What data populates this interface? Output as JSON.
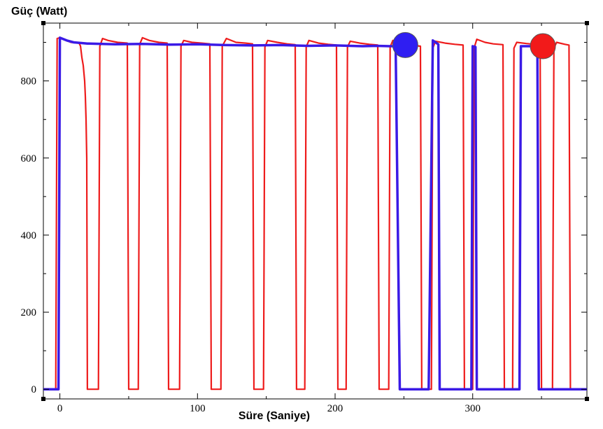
{
  "chart_data": {
    "type": "line",
    "title": "",
    "xlabel": "Süre (Saniye)",
    "ylabel": "Güç (Watt)",
    "xlim": [
      -12,
      383
    ],
    "ylim": [
      -25,
      950
    ],
    "xticks": [
      0,
      100,
      200,
      300
    ],
    "yticks": [
      0,
      200,
      400,
      600,
      800
    ],
    "grid": false,
    "legend": "none",
    "colors": {
      "red_series": "#ee1c1c",
      "blue_series": "#3a1ae6",
      "frame": "#000000"
    },
    "series": [
      {
        "color": "#ee1c1c",
        "points": [
          [
            -12,
            0
          ],
          [
            -3,
            0
          ],
          [
            -2,
            910
          ],
          [
            0,
            912
          ],
          [
            8,
            900
          ],
          [
            14,
            898
          ],
          [
            15,
            890
          ],
          [
            16,
            860
          ],
          [
            17,
            840
          ],
          [
            18,
            800
          ],
          [
            18.5,
            760
          ],
          [
            19,
            700
          ],
          [
            19.5,
            600
          ],
          [
            20,
            0
          ],
          [
            28,
            0
          ],
          [
            29,
            890
          ],
          [
            31,
            910
          ],
          [
            35,
            905
          ],
          [
            42,
            900
          ],
          [
            49,
            898
          ],
          [
            50,
            0
          ],
          [
            57,
            0
          ],
          [
            58,
            895
          ],
          [
            60,
            912
          ],
          [
            65,
            905
          ],
          [
            72,
            900
          ],
          [
            78,
            898
          ],
          [
            79,
            0
          ],
          [
            87,
            0
          ],
          [
            88,
            890
          ],
          [
            90,
            905
          ],
          [
            96,
            900
          ],
          [
            103,
            898
          ],
          [
            109,
            896
          ],
          [
            110,
            0
          ],
          [
            117,
            0
          ],
          [
            118,
            890
          ],
          [
            121,
            910
          ],
          [
            128,
            900
          ],
          [
            135,
            898
          ],
          [
            140,
            896
          ],
          [
            141,
            0
          ],
          [
            148,
            0
          ],
          [
            149,
            888
          ],
          [
            151,
            905
          ],
          [
            158,
            900
          ],
          [
            165,
            896
          ],
          [
            171,
            894
          ],
          [
            172,
            0
          ],
          [
            178,
            0
          ],
          [
            179,
            888
          ],
          [
            181,
            905
          ],
          [
            188,
            898
          ],
          [
            195,
            895
          ],
          [
            201,
            893
          ],
          [
            202,
            0
          ],
          [
            208,
            0
          ],
          [
            209,
            888
          ],
          [
            211,
            903
          ],
          [
            218,
            898
          ],
          [
            225,
            895
          ],
          [
            231,
            893
          ],
          [
            232,
            0
          ],
          [
            239,
            0
          ],
          [
            240,
            888
          ],
          [
            242,
            905
          ],
          [
            249,
            898
          ],
          [
            255,
            893
          ],
          [
            262,
            890
          ],
          [
            263,
            0
          ],
          [
            270,
            0
          ],
          [
            271,
            885
          ],
          [
            273,
            903
          ],
          [
            280,
            898
          ],
          [
            287,
            895
          ],
          [
            293,
            893
          ],
          [
            294,
            0
          ],
          [
            300,
            0
          ],
          [
            301,
            885
          ],
          [
            303,
            908
          ],
          [
            309,
            900
          ],
          [
            315,
            896
          ],
          [
            322,
            894
          ],
          [
            323,
            0
          ],
          [
            329,
            0
          ],
          [
            330,
            885
          ],
          [
            332,
            900
          ],
          [
            339,
            897
          ],
          [
            345,
            895
          ],
          [
            349,
            893
          ],
          [
            350,
            0
          ],
          [
            358,
            0
          ],
          [
            359,
            885
          ],
          [
            361,
            900
          ],
          [
            367,
            895
          ],
          [
            370,
            893
          ],
          [
            371,
            0
          ],
          [
            383,
            0
          ]
        ]
      },
      {
        "color": "#3a1ae6",
        "points": [
          [
            -12,
            0
          ],
          [
            -1,
            0
          ],
          [
            0,
            912
          ],
          [
            5,
            905
          ],
          [
            10,
            900
          ],
          [
            20,
            897
          ],
          [
            40,
            895
          ],
          [
            60,
            896
          ],
          [
            80,
            894
          ],
          [
            100,
            895
          ],
          [
            120,
            893
          ],
          [
            140,
            892
          ],
          [
            160,
            893
          ],
          [
            180,
            891
          ],
          [
            200,
            892
          ],
          [
            220,
            890
          ],
          [
            230,
            891
          ],
          [
            240,
            890
          ],
          [
            244,
            890
          ],
          [
            247,
            0
          ],
          [
            268,
            0
          ],
          [
            271,
            905
          ],
          [
            273,
            900
          ],
          [
            275,
            895
          ],
          [
            276,
            0
          ],
          [
            299,
            0
          ],
          [
            300,
            890
          ],
          [
            302,
            888
          ],
          [
            303,
            0
          ],
          [
            334,
            0
          ],
          [
            335,
            890
          ],
          [
            347,
            890
          ],
          [
            348,
            0
          ],
          [
            383,
            0
          ]
        ]
      }
    ],
    "markers": [
      {
        "x": 251,
        "y": 893,
        "color": "#2f1ef2"
      },
      {
        "x": 351,
        "y": 890,
        "color": "#f21a1a"
      }
    ]
  }
}
